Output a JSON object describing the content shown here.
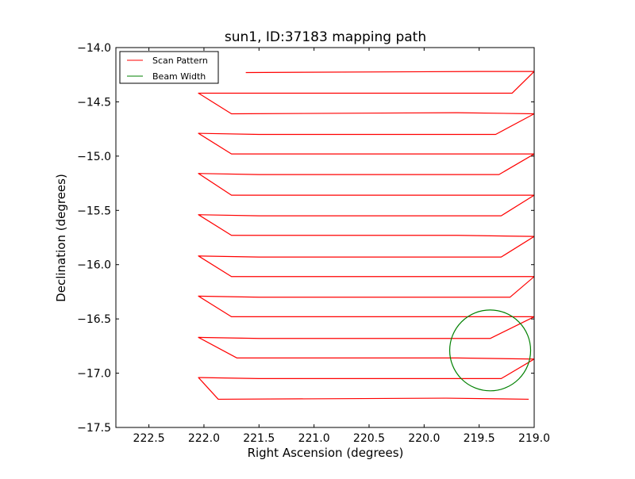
{
  "chart_data": {
    "type": "line",
    "title": "sun1, ID:37183 mapping path",
    "xlabel": "Right Ascension (degrees)",
    "ylabel": "Declination (degrees)",
    "xlim": [
      222.8,
      219.0
    ],
    "ylim": [
      -17.5,
      -14.0
    ],
    "x_inverted": true,
    "xticks": [
      222.5,
      222.0,
      221.5,
      221.0,
      220.5,
      220.0,
      219.5,
      219.0
    ],
    "xtick_labels": [
      "222.5",
      "222.0",
      "221.5",
      "221.0",
      "220.5",
      "220.0",
      "219.5",
      "219.0"
    ],
    "yticks": [
      -14.0,
      -14.5,
      -15.0,
      -15.5,
      -16.0,
      -16.5,
      -17.0,
      -17.5
    ],
    "ytick_labels": [
      "−14.0",
      "−14.5",
      "−15.0",
      "−15.5",
      "−16.0",
      "−16.5",
      "−17.0",
      "−17.5"
    ],
    "grid": false,
    "legend_position": "top-left",
    "series": [
      {
        "name": "Scan Pattern",
        "color": "#ff0000",
        "type": "line",
        "x": [
          221.62,
          219.5,
          219.0,
          219.2,
          221.2,
          222.05,
          221.75,
          219.7,
          219.0,
          219.35,
          221.5,
          222.05,
          221.75,
          219.7,
          219.0,
          219.32,
          221.5,
          222.05,
          221.75,
          219.7,
          219.0,
          219.3,
          221.5,
          222.05,
          221.75,
          219.7,
          219.0,
          219.3,
          221.5,
          222.05,
          221.75,
          219.7,
          219.0,
          219.22,
          221.5,
          222.05,
          221.75,
          219.7,
          219.0,
          219.4,
          221.5,
          222.05,
          221.7,
          219.7,
          219.0,
          219.3,
          221.5,
          222.05,
          221.87,
          219.8,
          219.05
        ],
        "y": [
          -14.23,
          -14.22,
          -14.22,
          -14.42,
          -14.42,
          -14.42,
          -14.61,
          -14.6,
          -14.61,
          -14.8,
          -14.8,
          -14.79,
          -14.98,
          -14.98,
          -14.98,
          -15.17,
          -15.17,
          -15.16,
          -15.36,
          -15.36,
          -15.36,
          -15.55,
          -15.55,
          -15.54,
          -15.73,
          -15.73,
          -15.74,
          -15.93,
          -15.93,
          -15.92,
          -16.11,
          -16.11,
          -16.11,
          -16.3,
          -16.3,
          -16.29,
          -16.48,
          -16.48,
          -16.48,
          -16.68,
          -16.68,
          -16.67,
          -16.86,
          -16.86,
          -16.87,
          -17.05,
          -17.05,
          -17.04,
          -17.24,
          -17.23,
          -17.24
        ]
      },
      {
        "name": "Beam Width",
        "color": "#008000",
        "type": "circle",
        "center": [
          219.4,
          -16.79
        ],
        "radius_deg": 0.37
      }
    ]
  }
}
